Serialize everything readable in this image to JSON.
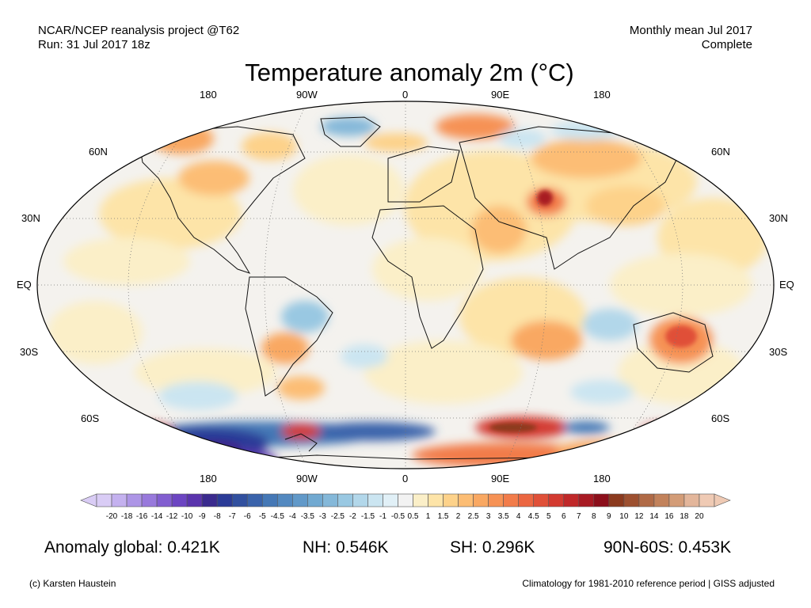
{
  "header": {
    "source": "NCAR/NCEP reanalysis project @T62",
    "run": "Run: 31 Jul 2017 18z",
    "period": "Monthly mean Jul 2017",
    "status": "Complete"
  },
  "title": "Temperature anomaly 2m (°C)",
  "longitude_labels": [
    "180",
    "90W",
    "0",
    "90E",
    "180"
  ],
  "latitude_labels": [
    "60N",
    "30N",
    "EQ",
    "30S",
    "60S"
  ],
  "colorbar": {
    "ticks": [
      "-20",
      "-18",
      "-16",
      "-14",
      "-12",
      "-10",
      "-9",
      "-8",
      "-7",
      "-6",
      "-5",
      "-4.5",
      "-4",
      "-3.5",
      "-3",
      "-2.5",
      "-2",
      "-1.5",
      "-1",
      "-0.5",
      "0.5",
      "1",
      "1.5",
      "2",
      "2.5",
      "3",
      "3.5",
      "4",
      "4.5",
      "5",
      "6",
      "7",
      "8",
      "9",
      "10",
      "12",
      "14",
      "16",
      "18",
      "20"
    ],
    "colors": [
      "#d9ccf5",
      "#c4b1ef",
      "#ad95e6",
      "#9879dc",
      "#825ed0",
      "#6c45c2",
      "#5a34ad",
      "#3a2a8e",
      "#2b3b97",
      "#31509f",
      "#3a63ab",
      "#4578b6",
      "#5389c0",
      "#6199c9",
      "#71a9d1",
      "#84b8d9",
      "#99c8e2",
      "#b2d7ea",
      "#cbe5f1",
      "#e1f0f7",
      "#f2f2f2",
      "#fbefc8",
      "#fde4a8",
      "#fdd28a",
      "#fcbd74",
      "#f9a862",
      "#f69255",
      "#f27c4a",
      "#eb6641",
      "#e05038",
      "#d33a30",
      "#c02829",
      "#a81a23",
      "#8c0f1b",
      "#8b3a1e",
      "#9d5030",
      "#b06a46",
      "#c2825b",
      "#d39c77",
      "#e3b69b",
      "#efcab4"
    ]
  },
  "stats": {
    "global": "Anomaly global: 0.421K",
    "nh": "NH: 0.546K",
    "sh": "SH: 0.296K",
    "arctic_band": "90N-60S: 0.453K"
  },
  "footer": {
    "copyright": "(c) Karsten Haustein",
    "note": "Climatology for 1981-2010 reference period | GISS adjusted"
  }
}
